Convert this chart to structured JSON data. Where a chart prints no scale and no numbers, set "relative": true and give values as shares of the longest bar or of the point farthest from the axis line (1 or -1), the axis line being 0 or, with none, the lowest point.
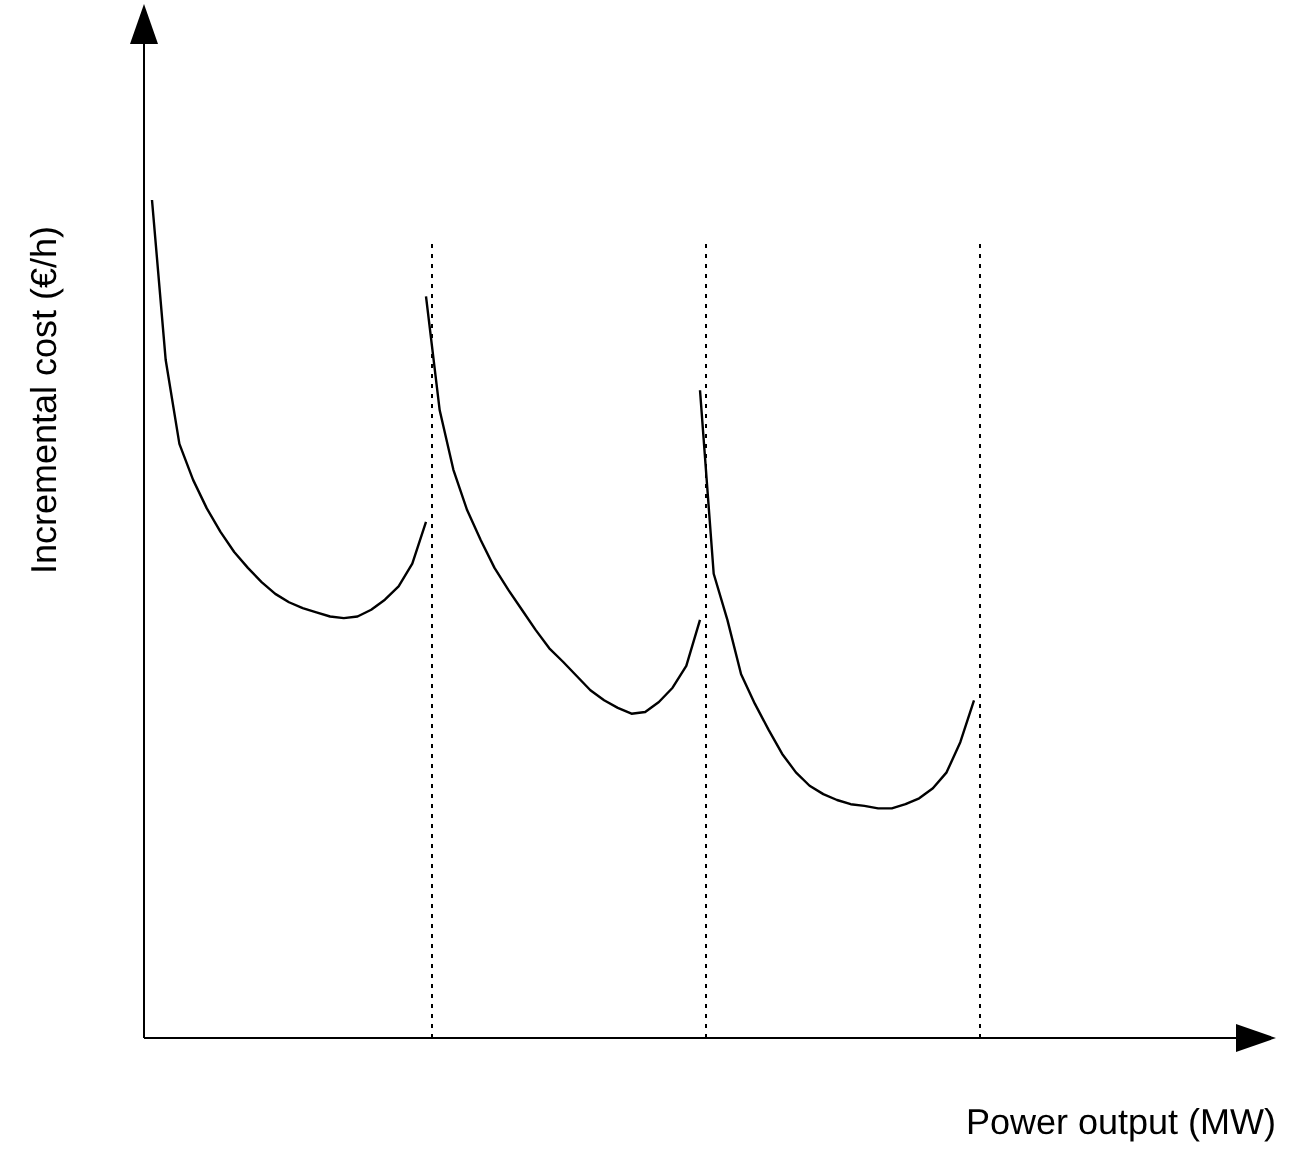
{
  "chart_data": {
    "type": "line",
    "xlabel": "Power output (MW)",
    "ylabel": "Incremental cost (€/h)",
    "relative": true,
    "marker": "none",
    "line_style": "solid",
    "categories": [
      null,
      null,
      null,
      null,
      null,
      null,
      null,
      null,
      null,
      null,
      null,
      null,
      null,
      null,
      null,
      null,
      null,
      null,
      null,
      null,
      null,
      null,
      null,
      null,
      null,
      null,
      null,
      null,
      null,
      null,
      null,
      null,
      null,
      null,
      null,
      null,
      null,
      null,
      null,
      null,
      null,
      null,
      null,
      null,
      null,
      null,
      null,
      null,
      null,
      null,
      null,
      null,
      null,
      null,
      null,
      null,
      null,
      null,
      null,
      null,
      null
    ],
    "series": [
      {
        "color": "#000000",
        "values": [
          1.0,
          0.809,
          0.709,
          0.666,
          0.632,
          0.604,
          0.58,
          0.561,
          0.544,
          0.53,
          0.52,
          0.513,
          0.508,
          0.503,
          0.501,
          0.503,
          0.511,
          0.523,
          0.539,
          0.566,
          0.616,
          null,
          null,
          null,
          null,
          null,
          null,
          null,
          null,
          null,
          null,
          null,
          null,
          null,
          null,
          null,
          null,
          null,
          null,
          null,
          null,
          null,
          null,
          null,
          null,
          null,
          null,
          null,
          null,
          null,
          null,
          null,
          null,
          null,
          null,
          null,
          null,
          null,
          null,
          null,
          null
        ]
      },
      {
        "color": "#000000",
        "values": [
          null,
          null,
          null,
          null,
          null,
          null,
          null,
          null,
          null,
          null,
          null,
          null,
          null,
          null,
          null,
          null,
          null,
          null,
          null,
          null,
          0.885,
          0.749,
          0.678,
          0.63,
          0.594,
          0.561,
          0.535,
          0.511,
          0.487,
          0.465,
          0.449,
          0.432,
          0.415,
          0.403,
          0.394,
          0.387,
          0.389,
          0.401,
          0.418,
          0.444,
          0.499,
          null,
          null,
          null,
          null,
          null,
          null,
          null,
          null,
          null,
          null,
          null,
          null,
          null,
          null,
          null,
          null,
          null,
          null,
          null,
          null
        ]
      },
      {
        "color": "#000000",
        "values": [
          null,
          null,
          null,
          null,
          null,
          null,
          null,
          null,
          null,
          null,
          null,
          null,
          null,
          null,
          null,
          null,
          null,
          null,
          null,
          null,
          null,
          null,
          null,
          null,
          null,
          null,
          null,
          null,
          null,
          null,
          null,
          null,
          null,
          null,
          null,
          null,
          null,
          null,
          null,
          null,
          0.773,
          0.554,
          0.499,
          0.434,
          0.399,
          0.368,
          0.339,
          0.317,
          0.301,
          0.291,
          0.284,
          0.279,
          0.277,
          0.274,
          0.274,
          0.279,
          0.286,
          0.298,
          0.317,
          0.353,
          0.403
        ]
      }
    ]
  }
}
